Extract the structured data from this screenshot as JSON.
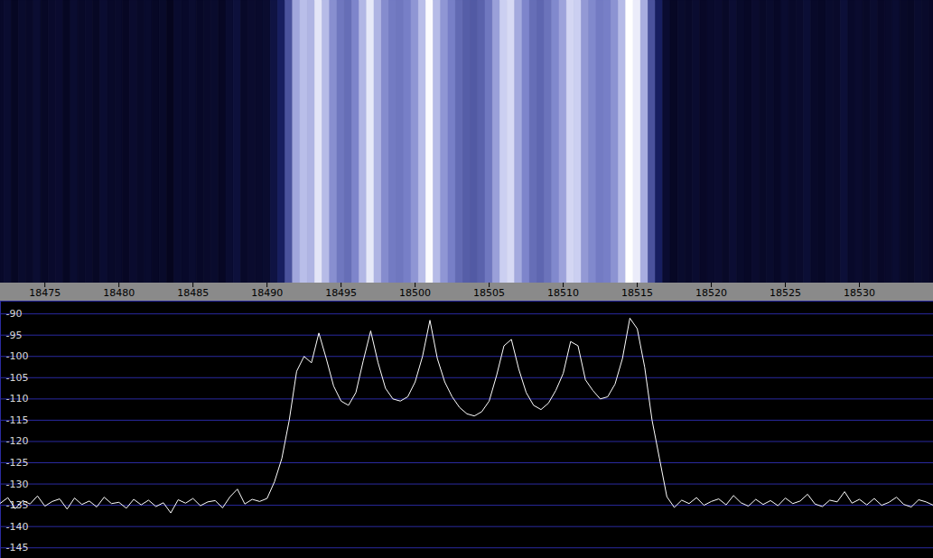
{
  "chart_data": {
    "type": "line",
    "color": "#ffffff",
    "grid": true,
    "xlim": [
      18472,
      18535
    ],
    "ylim": [
      -147.5,
      -87
    ],
    "xticks": [
      18475,
      18480,
      18485,
      18490,
      18495,
      18500,
      18505,
      18510,
      18515,
      18520,
      18525,
      18530
    ],
    "yticks": [
      -90,
      -95,
      -100,
      -105,
      -110,
      -115,
      -120,
      -125,
      -130,
      -135,
      -140,
      -145
    ],
    "x": [
      18472,
      18472.5,
      18473,
      18473.5,
      18474,
      18474.5,
      18475,
      18475.5,
      18476,
      18476.5,
      18477,
      18477.5,
      18478,
      18478.5,
      18479,
      18479.5,
      18480,
      18480.5,
      18481,
      18481.5,
      18482,
      18482.5,
      18483,
      18483.5,
      18484,
      18484.5,
      18485,
      18485.5,
      18486,
      18486.5,
      18487,
      18487.5,
      18488,
      18488.5,
      18489,
      18489.5,
      18490,
      18490.5,
      18491,
      18491.5,
      18492,
      18492.5,
      18493,
      18493.5,
      18494,
      18494.5,
      18495,
      18495.5,
      18496,
      18496.5,
      18497,
      18497.5,
      18498,
      18498.5,
      18499,
      18499.5,
      18500,
      18500.5,
      18501,
      18501.5,
      18502,
      18502.5,
      18503,
      18503.5,
      18504,
      18504.5,
      18505,
      18505.5,
      18506,
      18506.5,
      18507,
      18507.5,
      18508,
      18508.5,
      18509,
      18509.5,
      18510,
      18510.5,
      18511,
      18511.5,
      18512,
      18512.5,
      18513,
      18513.5,
      18514,
      18514.5,
      18515,
      18515.5,
      18516,
      18516.5,
      18517,
      18517.5,
      18518,
      18518.5,
      18519,
      18519.5,
      18520,
      18520.5,
      18521,
      18521.5,
      18522,
      18522.5,
      18523,
      18523.5,
      18524,
      18524.5,
      18525,
      18525.5,
      18526,
      18526.5,
      18527,
      18527.5,
      18528,
      18528.5,
      18529,
      18529.5,
      18530,
      18530.5,
      18531,
      18531.5,
      18532,
      18532.5,
      18533,
      18533.5,
      18534,
      18534.5,
      18535
    ],
    "values": [
      -134.5,
      -133.2,
      -135.8,
      -133.9,
      -134.7,
      -132.8,
      -135.2,
      -134.1,
      -133.5,
      -135.9,
      -133.3,
      -134.8,
      -134.0,
      -135.4,
      -133.1,
      -134.6,
      -134.3,
      -135.7,
      -133.6,
      -134.9,
      -133.8,
      -135.3,
      -134.4,
      -136.8,
      -133.7,
      -134.5,
      -133.4,
      -135.1,
      -134.2,
      -133.9,
      -135.6,
      -133.0,
      -131.2,
      -134.7,
      -133.6,
      -134.1,
      -133.4,
      -129.5,
      -124.0,
      -115.0,
      -103.5,
      -100.0,
      -101.5,
      -94.5,
      -100.5,
      -107.0,
      -110.5,
      -111.5,
      -108.5,
      -101.0,
      -94.0,
      -101.5,
      -107.5,
      -110.0,
      -110.5,
      -109.5,
      -106.0,
      -100.0,
      -91.5,
      -100.5,
      -106.0,
      -109.5,
      -112.0,
      -113.5,
      -114.0,
      -113.0,
      -110.5,
      -104.5,
      -97.5,
      -96.0,
      -103.0,
      -108.5,
      -111.5,
      -112.5,
      -111.0,
      -108.0,
      -104.0,
      -96.5,
      -97.5,
      -105.5,
      -108.0,
      -110.0,
      -109.5,
      -106.5,
      -100.5,
      -91.0,
      -93.5,
      -102.5,
      -115.0,
      -124.0,
      -133.0,
      -135.5,
      -133.8,
      -134.6,
      -133.2,
      -135.0,
      -134.1,
      -133.5,
      -134.9,
      -132.7,
      -134.4,
      -135.2,
      -133.6,
      -134.8,
      -133.9,
      -135.1,
      -133.3,
      -134.6,
      -134.0,
      -132.4,
      -134.7,
      -135.3,
      -133.8,
      -134.2,
      -131.8,
      -134.5,
      -133.6,
      -134.9,
      -133.4,
      -135.0,
      -134.3,
      -133.1,
      -134.8,
      -135.4,
      -133.7,
      -134.2,
      -135.0
    ]
  }
}
